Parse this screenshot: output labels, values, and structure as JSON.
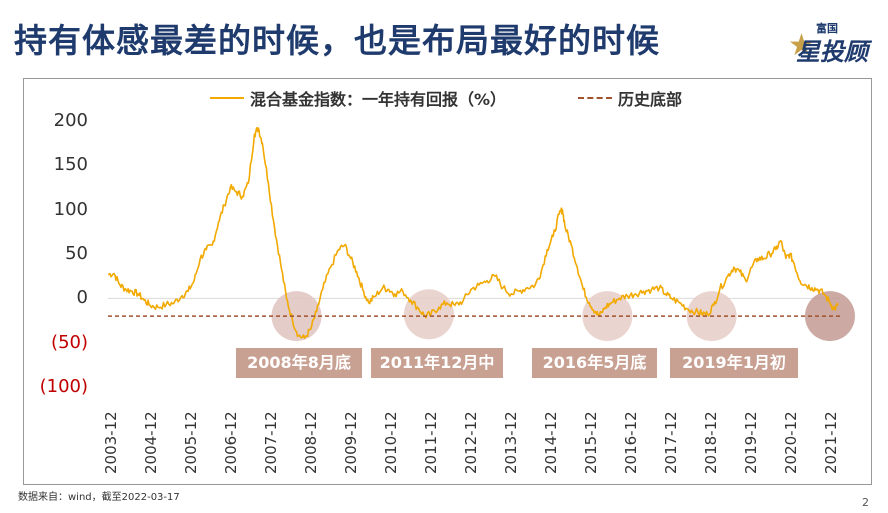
{
  "page": {
    "title": "持有体感最差的时候，也是布局最好的时候",
    "logo_top": "富国",
    "logo_main": "星投顾",
    "source": "数据来自：wind，截至2022-03-17",
    "page_number": "2"
  },
  "chart_data": {
    "type": "line",
    "title": "",
    "legend": [
      {
        "name": "混合基金指数：一年持有回报（%）",
        "style": "solid",
        "color": "#f2a900"
      },
      {
        "name": "历史底部",
        "style": "dashed",
        "color": "#a0522d"
      }
    ],
    "y_ticks": [
      "200",
      "150",
      "100",
      "50",
      "0",
      "(50)",
      "(100)"
    ],
    "y_tick_values": [
      200,
      150,
      100,
      50,
      0,
      -50,
      -100
    ],
    "ylim": [
      -100,
      200
    ],
    "x_ticks": [
      "2003-12",
      "2004-12",
      "2005-12",
      "2006-12",
      "2007-12",
      "2008-12",
      "2009-12",
      "2010-12",
      "2011-12",
      "2012-12",
      "2013-12",
      "2014-12",
      "2015-12",
      "2016-12",
      "2017-12",
      "2018-12",
      "2019-12",
      "2020-12",
      "2021-12"
    ],
    "xlim": [
      2003.95,
      2022.2
    ],
    "bottom_line_value": -20,
    "series": [
      {
        "name": "混合基金指数：一年持有回报（%）",
        "points": [
          [
            2003.95,
            27
          ],
          [
            2004.1,
            28
          ],
          [
            2004.25,
            15
          ],
          [
            2004.4,
            10
          ],
          [
            2004.55,
            8
          ],
          [
            2004.7,
            5
          ],
          [
            2004.85,
            -2
          ],
          [
            2005.0,
            -8
          ],
          [
            2005.2,
            -10
          ],
          [
            2005.4,
            -7
          ],
          [
            2005.6,
            -5
          ],
          [
            2005.8,
            3
          ],
          [
            2005.95,
            8
          ],
          [
            2006.1,
            20
          ],
          [
            2006.25,
            45
          ],
          [
            2006.4,
            55
          ],
          [
            2006.55,
            60
          ],
          [
            2006.7,
            85
          ],
          [
            2006.85,
            105
          ],
          [
            2007.0,
            125
          ],
          [
            2007.15,
            120
          ],
          [
            2007.3,
            115
          ],
          [
            2007.45,
            130
          ],
          [
            2007.6,
            185
          ],
          [
            2007.7,
            192
          ],
          [
            2007.8,
            175
          ],
          [
            2007.95,
            130
          ],
          [
            2008.1,
            80
          ],
          [
            2008.25,
            40
          ],
          [
            2008.4,
            0
          ],
          [
            2008.55,
            -25
          ],
          [
            2008.7,
            -42
          ],
          [
            2008.85,
            -45
          ],
          [
            2009.0,
            -35
          ],
          [
            2009.15,
            -15
          ],
          [
            2009.3,
            10
          ],
          [
            2009.5,
            35
          ],
          [
            2009.7,
            55
          ],
          [
            2009.85,
            60
          ],
          [
            2010.0,
            45
          ],
          [
            2010.15,
            30
          ],
          [
            2010.3,
            10
          ],
          [
            2010.45,
            -5
          ],
          [
            2010.6,
            2
          ],
          [
            2010.8,
            12
          ],
          [
            2010.95,
            10
          ],
          [
            2011.1,
            5
          ],
          [
            2011.3,
            8
          ],
          [
            2011.5,
            -2
          ],
          [
            2011.7,
            -12
          ],
          [
            2011.85,
            -20
          ],
          [
            2012.0,
            -18
          ],
          [
            2012.2,
            -10
          ],
          [
            2012.4,
            -5
          ],
          [
            2012.6,
            -8
          ],
          [
            2012.8,
            -3
          ],
          [
            2013.0,
            10
          ],
          [
            2013.2,
            15
          ],
          [
            2013.4,
            20
          ],
          [
            2013.6,
            25
          ],
          [
            2013.8,
            12
          ],
          [
            2014.0,
            5
          ],
          [
            2014.2,
            8
          ],
          [
            2014.4,
            12
          ],
          [
            2014.6,
            15
          ],
          [
            2014.75,
            30
          ],
          [
            2014.9,
            55
          ],
          [
            2015.05,
            70
          ],
          [
            2015.2,
            95
          ],
          [
            2015.28,
            100
          ],
          [
            2015.35,
            80
          ],
          [
            2015.5,
            60
          ],
          [
            2015.65,
            35
          ],
          [
            2015.8,
            10
          ],
          [
            2015.95,
            -5
          ],
          [
            2016.1,
            -15
          ],
          [
            2016.2,
            -20
          ],
          [
            2016.35,
            -10
          ],
          [
            2016.5,
            -5
          ],
          [
            2016.7,
            0
          ],
          [
            2016.9,
            3
          ],
          [
            2017.1,
            5
          ],
          [
            2017.3,
            8
          ],
          [
            2017.5,
            10
          ],
          [
            2017.7,
            12
          ],
          [
            2017.85,
            5
          ],
          [
            2018.0,
            0
          ],
          [
            2018.2,
            -5
          ],
          [
            2018.4,
            -12
          ],
          [
            2018.6,
            -15
          ],
          [
            2018.75,
            -17
          ],
          [
            2018.9,
            -18
          ],
          [
            2019.05,
            -8
          ],
          [
            2019.2,
            10
          ],
          [
            2019.4,
            25
          ],
          [
            2019.55,
            35
          ],
          [
            2019.7,
            30
          ],
          [
            2019.85,
            20
          ],
          [
            2020.0,
            35
          ],
          [
            2020.15,
            45
          ],
          [
            2020.3,
            45
          ],
          [
            2020.45,
            50
          ],
          [
            2020.6,
            55
          ],
          [
            2020.72,
            65
          ],
          [
            2020.85,
            45
          ],
          [
            2020.95,
            50
          ],
          [
            2021.05,
            40
          ],
          [
            2021.2,
            20
          ],
          [
            2021.35,
            15
          ],
          [
            2021.5,
            12
          ],
          [
            2021.65,
            10
          ],
          [
            2021.8,
            5
          ],
          [
            2021.95,
            -5
          ],
          [
            2022.05,
            -12
          ],
          [
            2022.15,
            -8
          ]
        ]
      }
    ],
    "highlights": [
      {
        "label": "2008年8月底",
        "x": 2008.65,
        "y": -20,
        "circle_color": "#dfc3bf"
      },
      {
        "label": "2011年12月中",
        "x": 2011.95,
        "y": -18,
        "circle_color": "#e6ccc7"
      },
      {
        "label": "2016年5月底",
        "x": 2016.4,
        "y": -20,
        "circle_color": "#e6ccc7"
      },
      {
        "label": "2019年1月初",
        "x": 2019.0,
        "y": -20,
        "circle_color": "#e6ccc7"
      },
      {
        "label": "",
        "x": 2021.95,
        "y": -20,
        "circle_color": "#c39a93"
      }
    ]
  }
}
